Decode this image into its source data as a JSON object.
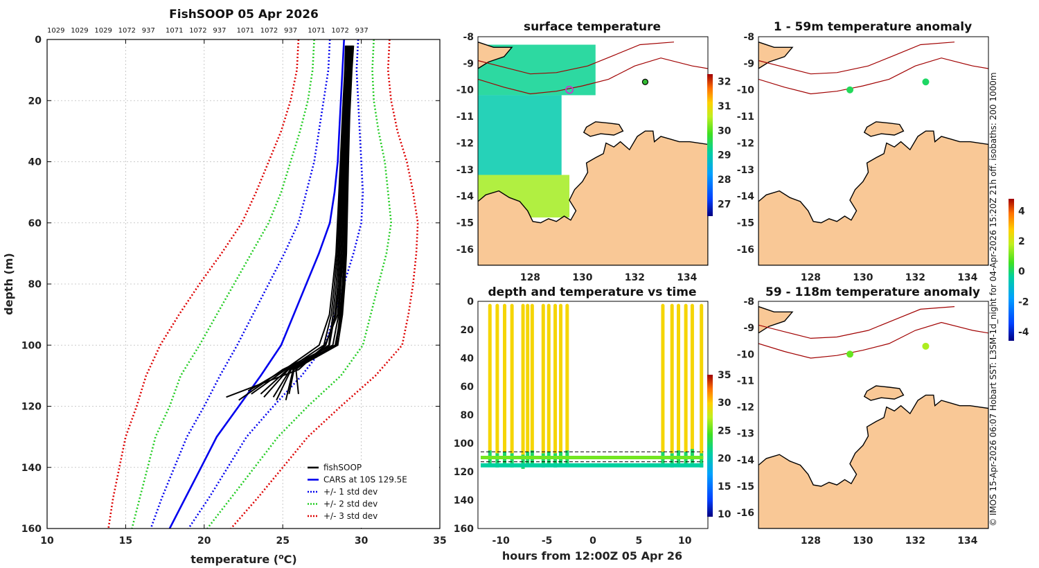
{
  "chart_data": [
    {
      "id": "profile",
      "type": "line",
      "title": "FishSOOP 05 Apr 2026",
      "top_labels": [
        "1029",
        "1029",
        "1029",
        "1072",
        "937",
        "1071",
        "1072",
        "937",
        "1071",
        "1072",
        "937",
        "1071",
        "1072",
        "937"
      ],
      "xlabel": "temperature (°C)",
      "xlabel_main": "temperature (",
      "xlabel_sup": "o",
      "xlabel_end": "C)",
      "ylabel": "depth (m)",
      "xlim": [
        10,
        35
      ],
      "ylim": [
        0,
        160
      ],
      "xticks": [
        10,
        15,
        20,
        25,
        30,
        35
      ],
      "yticks": [
        0,
        20,
        40,
        60,
        80,
        100,
        120,
        140,
        160
      ],
      "legend": [
        {
          "label": "fishSOOP",
          "color": "#000000",
          "style": "solid"
        },
        {
          "label": "CARS at 10S 129.5E",
          "color": "#0000ee",
          "style": "solid"
        },
        {
          "label": "+/- 1 std dev",
          "color": "#0000ee",
          "style": "dotted"
        },
        {
          "label": "+/- 2 std dev",
          "color": "#22cc22",
          "style": "dotted"
        },
        {
          "label": "+/- 3 std dev",
          "color": "#dd0000",
          "style": "dotted"
        }
      ],
      "cars_mean": [
        [
          28.9,
          0
        ],
        [
          28.8,
          10
        ],
        [
          28.7,
          20
        ],
        [
          28.6,
          30
        ],
        [
          28.5,
          40
        ],
        [
          28.3,
          50
        ],
        [
          28.0,
          60
        ],
        [
          27.3,
          70
        ],
        [
          26.5,
          80
        ],
        [
          25.7,
          90
        ],
        [
          24.9,
          100
        ],
        [
          23.6,
          110
        ],
        [
          22.2,
          120
        ],
        [
          20.8,
          130
        ],
        [
          19.8,
          140
        ],
        [
          18.8,
          150
        ],
        [
          17.8,
          160
        ]
      ],
      "std1": [
        0.9,
        0.9,
        1.1,
        1.3,
        1.5,
        1.8,
        2.0,
        2.2,
        2.4,
        2.6,
        2.8,
        2.6,
        2.2,
        1.9,
        1.7,
        1.5,
        1.2
      ],
      "std2": [
        1.9,
        1.9,
        2.1,
        2.5,
        3.0,
        3.4,
        3.9,
        4.3,
        4.6,
        4.9,
        5.2,
        5.1,
        4.4,
        3.9,
        3.4,
        2.9,
        2.4
      ],
      "std3": [
        2.9,
        2.9,
        3.2,
        3.7,
        4.4,
        5.0,
        5.6,
        6.2,
        6.8,
        7.3,
        7.7,
        7.3,
        6.5,
        5.8,
        5.2,
        4.6,
        3.9
      ],
      "fishsoop_profiles": [
        [
          [
            29.0,
            2
          ],
          [
            28.95,
            10
          ],
          [
            28.8,
            25
          ],
          [
            28.67,
            40
          ],
          [
            28.53,
            55
          ],
          [
            28.39,
            70
          ],
          [
            28.19,
            80
          ],
          [
            27.97,
            90
          ],
          [
            27.32,
            100
          ],
          [
            25.12,
            108
          ],
          [
            22.8,
            115
          ]
        ],
        [
          [
            29.05,
            2
          ],
          [
            28.97,
            10
          ],
          [
            28.85,
            25
          ],
          [
            28.73,
            40
          ],
          [
            28.6,
            55
          ],
          [
            28.47,
            70
          ],
          [
            28.3,
            80
          ],
          [
            28.09,
            90
          ],
          [
            27.62,
            100
          ],
          [
            25.3,
            108
          ],
          [
            23.6,
            116
          ]
        ],
        [
          [
            29.1,
            2
          ],
          [
            29.05,
            10
          ],
          [
            28.9,
            25
          ],
          [
            28.78,
            40
          ],
          [
            28.67,
            55
          ],
          [
            28.55,
            70
          ],
          [
            28.41,
            80
          ],
          [
            28.2,
            90
          ],
          [
            27.93,
            100
          ],
          [
            25.48,
            108
          ],
          [
            24.4,
            117
          ]
        ],
        [
          [
            29.15,
            2
          ],
          [
            29.08,
            10
          ],
          [
            28.95,
            25
          ],
          [
            28.85,
            40
          ],
          [
            28.74,
            55
          ],
          [
            28.62,
            70
          ],
          [
            28.51,
            80
          ],
          [
            28.31,
            90
          ],
          [
            27.97,
            100
          ],
          [
            25.66,
            108
          ],
          [
            25.2,
            118
          ]
        ],
        [
          [
            29.2,
            2
          ],
          [
            29.12,
            10
          ],
          [
            29.0,
            25
          ],
          [
            28.91,
            40
          ],
          [
            28.81,
            55
          ],
          [
            28.7,
            70
          ],
          [
            28.6,
            80
          ],
          [
            28.38,
            90
          ],
          [
            27.74,
            100
          ],
          [
            25.84,
            108
          ],
          [
            26.0,
            116
          ]
        ],
        [
          [
            29.25,
            2
          ],
          [
            29.17,
            10
          ],
          [
            29.05,
            25
          ],
          [
            28.97,
            40
          ],
          [
            28.88,
            55
          ],
          [
            28.78,
            70
          ],
          [
            28.66,
            80
          ],
          [
            28.49,
            90
          ],
          [
            27.7,
            100
          ],
          [
            26.02,
            108
          ],
          [
            21.4,
            117
          ]
        ],
        [
          [
            29.3,
            2
          ],
          [
            29.23,
            10
          ],
          [
            29.1,
            25
          ],
          [
            29.0,
            40
          ],
          [
            28.95,
            55
          ],
          [
            28.86,
            70
          ],
          [
            28.7,
            80
          ],
          [
            28.56,
            90
          ],
          [
            28.19,
            100
          ],
          [
            25.0,
            108
          ],
          [
            22.2,
            118
          ]
        ],
        [
          [
            29.35,
            2
          ],
          [
            29.28,
            10
          ],
          [
            29.15,
            25
          ],
          [
            29.05,
            40
          ],
          [
            29.0,
            55
          ],
          [
            28.92,
            70
          ],
          [
            28.8,
            80
          ],
          [
            28.63,
            90
          ],
          [
            28.43,
            100
          ],
          [
            25.18,
            108
          ],
          [
            23.0,
            116
          ]
        ],
        [
          [
            29.4,
            2
          ],
          [
            29.32,
            10
          ],
          [
            29.18,
            25
          ],
          [
            29.1,
            40
          ],
          [
            29.05,
            55
          ],
          [
            28.95,
            70
          ],
          [
            28.85,
            80
          ],
          [
            28.7,
            90
          ],
          [
            28.34,
            100
          ],
          [
            25.36,
            108
          ],
          [
            23.8,
            117
          ]
        ],
        [
          [
            29.45,
            2
          ],
          [
            29.35,
            10
          ],
          [
            29.22,
            25
          ],
          [
            29.15,
            40
          ],
          [
            29.08,
            55
          ],
          [
            29.0,
            70
          ],
          [
            28.9,
            80
          ],
          [
            28.75,
            90
          ],
          [
            28.38,
            100
          ],
          [
            25.54,
            108
          ],
          [
            24.6,
            118
          ]
        ],
        [
          [
            29.5,
            2
          ],
          [
            29.4,
            10
          ],
          [
            29.26,
            25
          ],
          [
            29.18,
            40
          ],
          [
            29.12,
            55
          ],
          [
            29.05,
            70
          ],
          [
            28.95,
            80
          ],
          [
            28.8,
            90
          ],
          [
            28.5,
            100
          ],
          [
            25.72,
            108
          ],
          [
            25.4,
            116
          ]
        ]
      ]
    },
    {
      "id": "sst_map",
      "type": "heatmap",
      "title": "surface temperature",
      "xticks": [
        128,
        130,
        132,
        134
      ],
      "yticks": [
        -8,
        -9,
        -10,
        -11,
        -12,
        -13,
        -14,
        -15,
        -16
      ],
      "xlim": [
        126,
        134.8
      ],
      "ylim": [
        -16.6,
        -8
      ],
      "colorbar_ticks": [
        27,
        28,
        29,
        30,
        31,
        32
      ],
      "colorbar_range": [
        26.5,
        32.3
      ],
      "markers": [
        {
          "lon": 132.4,
          "lat": -9.7,
          "type": "filled",
          "color": "#33bb33"
        },
        {
          "lon": 129.5,
          "lat": -10.0,
          "type": "open",
          "color": "#cc33cc"
        }
      ],
      "sst_patches": [
        {
          "lon0": 126,
          "lat0": -8.3,
          "lon1": 130.5,
          "lat1": -10.2,
          "temp": 29.2
        },
        {
          "lon0": 126,
          "lat0": -10.2,
          "lon1": 129.2,
          "lat1": -13.2,
          "temp": 29.0
        },
        {
          "lon0": 126,
          "lat0": -13.2,
          "lon1": 129.5,
          "lat1": -14.8,
          "temp": 30.4
        }
      ]
    },
    {
      "id": "time_series",
      "type": "scatter",
      "title": "depth and temperature vs time",
      "xlabel": "hours from 12:00Z 05 Apr 26",
      "xticks": [
        -10,
        -5,
        0,
        5,
        10
      ],
      "yticks": [
        0,
        20,
        40,
        60,
        80,
        100,
        120,
        140,
        160
      ],
      "xlim": [
        -12.5,
        12.5
      ],
      "ylim": [
        0,
        160
      ],
      "colorbar_ticks": [
        10,
        15,
        20,
        25,
        30,
        35
      ],
      "colorbar_range": [
        9.5,
        35
      ],
      "casts_hours": [
        -11.2,
        -10.4,
        -9.6,
        -8.8,
        -7.6,
        -7.1,
        -6.6,
        -5.4,
        -4.8,
        -4.1,
        -3.5,
        -2.8,
        7.6,
        8.6,
        9.3,
        10.1,
        10.8,
        11.8
      ],
      "bottom_depth": [
        115,
        117,
        116,
        117,
        118,
        116,
        115,
        117,
        116,
        117,
        116,
        115,
        116,
        117,
        115,
        116,
        114,
        117
      ],
      "surface_temp": 29.5,
      "bottom_temp": 22.5
    },
    {
      "id": "anom1",
      "type": "heatmap",
      "title": "1 - 59m temperature anomaly",
      "xticks": [
        128,
        130,
        132,
        134
      ],
      "yticks": [
        -8,
        -9,
        -10,
        -11,
        -12,
        -13,
        -14,
        -15,
        -16
      ],
      "xlim": [
        126,
        134.8
      ],
      "ylim": [
        -16.6,
        -8
      ],
      "markers": [
        {
          "lon": 129.5,
          "lat": -10.0,
          "anom": 0.3
        },
        {
          "lon": 132.4,
          "lat": -9.7,
          "anom": 0.2
        }
      ]
    },
    {
      "id": "anom2",
      "type": "heatmap",
      "title": "59 - 118m temperature anomaly",
      "xticks": [
        128,
        130,
        132,
        134
      ],
      "yticks": [
        -8,
        -9,
        -10,
        -11,
        -12,
        -13,
        -14,
        -15,
        -16
      ],
      "xlim": [
        126,
        134.8
      ],
      "ylim": [
        -16.6,
        -8
      ],
      "markers": [
        {
          "lon": 129.5,
          "lat": -10.0,
          "anom": 1.2
        },
        {
          "lon": 132.4,
          "lat": -9.7,
          "anom": 1.8
        }
      ]
    },
    {
      "id": "anom_colorbar",
      "type": "heatmap",
      "colorbar_ticks": [
        -4,
        -2,
        0,
        2,
        4
      ],
      "colorbar_range": [
        -4.6,
        4.8
      ]
    }
  ],
  "credit": "© IMOS 15-Apr-2026 06:07 Hobart SST: L3SM-1d_night for 04-Apr-2026 15:20Z 21h off. isobaths: 200  1000m"
}
